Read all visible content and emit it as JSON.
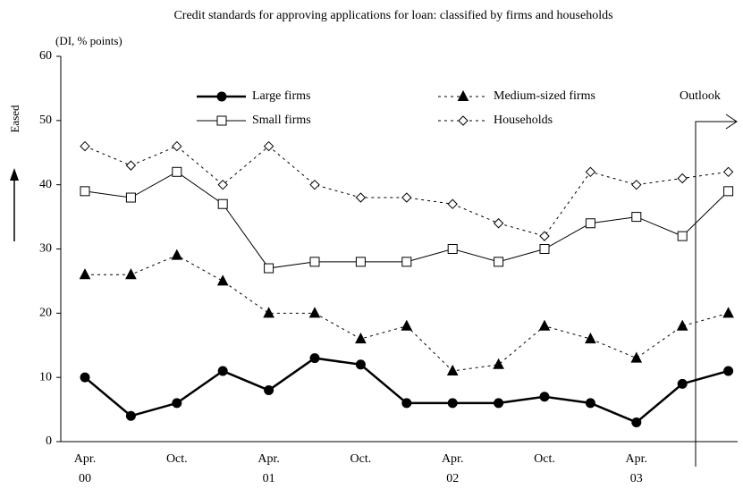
{
  "chart_data": {
    "type": "line",
    "title": "Credit standards for approving applications for loan: classified by firms and households",
    "y_unit_label": "(DI, % points)",
    "y_direction_label": "Eased",
    "outlook_label": "Outlook",
    "categories": [
      "Apr. 00",
      null,
      "Oct.",
      null,
      "Apr. 01",
      null,
      "Oct.",
      null,
      "Apr. 02",
      null,
      "Oct.",
      null,
      "Apr. 03",
      null,
      null
    ],
    "series": [
      {
        "name": "Large firms",
        "color": "#000000",
        "marker": "circle",
        "dashed": false,
        "width": 2.5,
        "values": [
          10,
          4,
          6,
          11,
          8,
          13,
          12,
          6,
          6,
          6,
          7,
          6,
          3,
          9,
          11
        ]
      },
      {
        "name": "Small firms",
        "color": "#000000",
        "marker": "square",
        "dashed": false,
        "width": 1,
        "values": [
          39,
          38,
          42,
          37,
          27,
          28,
          28,
          28,
          30,
          28,
          30,
          34,
          35,
          32,
          39
        ]
      },
      {
        "name": "Medium-sized firms",
        "color": "#000000",
        "marker": "triangle",
        "dashed": true,
        "width": 1,
        "values": [
          26,
          26,
          29,
          25,
          20,
          20,
          16,
          18,
          11,
          12,
          18,
          16,
          13,
          18,
          20
        ]
      },
      {
        "name": "Households",
        "color": "#000000",
        "marker": "diamond",
        "dashed": true,
        "width": 1,
        "values": [
          46,
          43,
          46,
          40,
          46,
          40,
          38,
          38,
          37,
          34,
          32,
          42,
          40,
          41,
          42
        ]
      }
    ],
    "ylim": [
      0,
      60
    ],
    "yticks": [
      0,
      10,
      20,
      30,
      40,
      50,
      60
    ],
    "grid": false
  }
}
